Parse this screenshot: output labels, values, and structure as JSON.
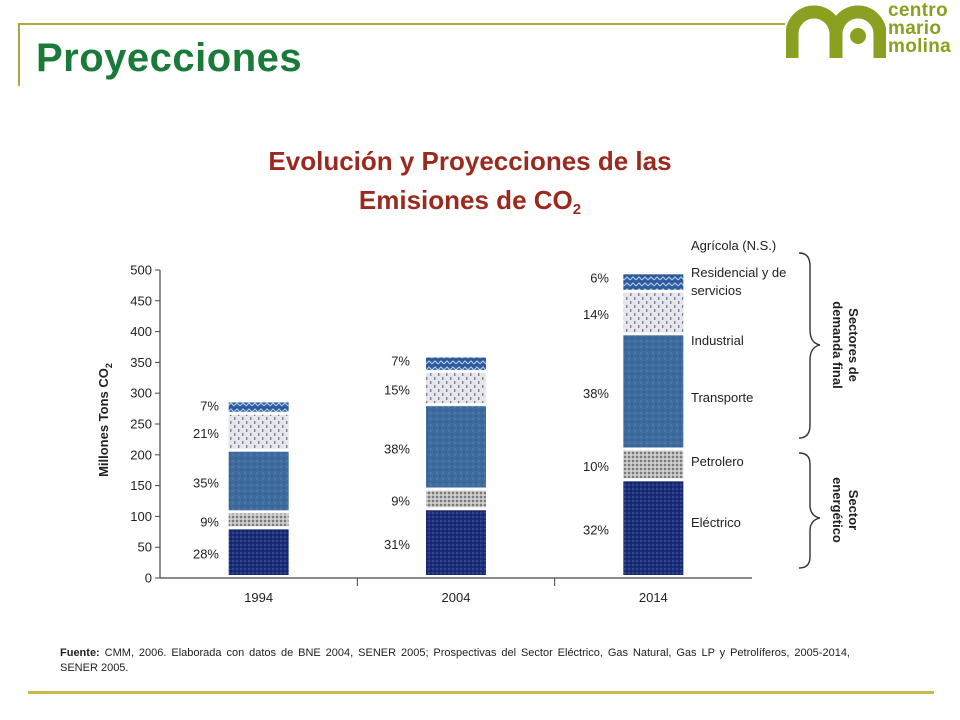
{
  "slide": {
    "title": "Proyecciones",
    "logo_lines": [
      "centro",
      "mario",
      "molina"
    ],
    "source_label": "Fuente:",
    "source_text": "CMM, 2006. Elaborada con datos de BNE 2004, SENER 2005; Prospectivas del Sector Eléctrico, Gas Natural, Gas LP y Petrolíferos, 2005-2014,  SENER 2005.",
    "colors": {
      "title": "#1a7a3a",
      "chart_title": "#9b2a1e",
      "accent": "#8aa020",
      "rule": "#c9b94a"
    }
  },
  "chart_data": {
    "type": "bar",
    "stacked": true,
    "title_line1": "Evolución y Proyecciones de las",
    "title_line2": "Emisiones de CO",
    "title_sub": "2",
    "ylabel": "Millones Tons CO",
    "ylabel_sub": "2",
    "ylim": [
      0,
      500
    ],
    "yticks": [
      "0",
      "50",
      "100",
      "150",
      "200",
      "250",
      "300",
      "350",
      "400",
      "450",
      "500"
    ],
    "categories": [
      "1994",
      "2004",
      "2014"
    ],
    "series": [
      {
        "name": "Eléctrico",
        "values": [
          79,
          110,
          157
        ],
        "labels": [
          "28%",
          "31%",
          "32%"
        ]
      },
      {
        "name": "Petrolero",
        "values": [
          26,
          32,
          50
        ],
        "labels": [
          "9%",
          "9%",
          "10%"
        ]
      },
      {
        "name": "Transporte",
        "values": [
          100,
          137,
          187
        ],
        "labels": [
          "35%",
          "38%",
          "38%"
        ]
      },
      {
        "name": "Industrial",
        "values": [
          60,
          54,
          69
        ],
        "labels": [
          "21%",
          "15%",
          "14%"
        ]
      },
      {
        "name": "Residencial y de servicios",
        "values": [
          20,
          25,
          30
        ],
        "labels": [
          "7%",
          "7%",
          "6%"
        ]
      },
      {
        "name": "Agrícola (N.S.)",
        "values": [
          0,
          0,
          0
        ],
        "labels": [
          "",
          "",
          ""
        ]
      }
    ],
    "legend_position": "right",
    "legend": {
      "agricola": "Agrícola (N.S.)",
      "residencial_1": "Residencial y de",
      "residencial_2": "servicios",
      "industrial": "Industrial",
      "transporte": "Transporte",
      "petrolero": "Petrolero",
      "electrico": "Eléctrico"
    },
    "groups": {
      "demand_1": "Sectores de",
      "demand_2": "demanda final",
      "energy_1": "Sector",
      "energy_2": "energético"
    }
  }
}
